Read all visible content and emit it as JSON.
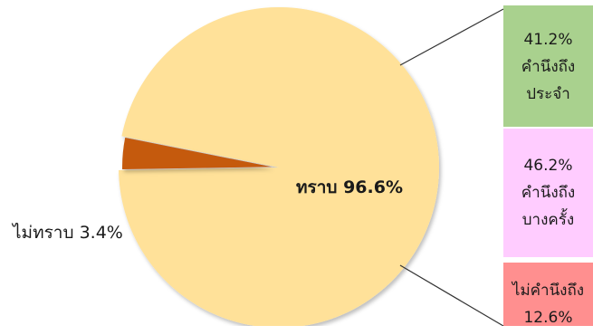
{
  "chart_data": {
    "type": "pie",
    "title": "",
    "slices": [
      {
        "label": "ทราบ",
        "value": 96.6,
        "display": "ทราบ 96.6%",
        "color": "#ffe199"
      },
      {
        "label": "ไม่ทราบ",
        "value": 3.4,
        "display": "ไม่ทราบ  3.4%",
        "color": "#c55a11",
        "exploded": true
      }
    ],
    "breakdown": {
      "of": "ทราบ",
      "type": "stacked-bar",
      "items": [
        {
          "value": 41.2,
          "percent": "41.2%",
          "line1": "คำนึงถึง",
          "line2": "ประจำ",
          "color": "#a9d18e"
        },
        {
          "value": 46.2,
          "percent": "46.2%",
          "line1": "คำนึงถึง",
          "line2": "บางครั้ง",
          "color": "#ffccff"
        },
        {
          "value": 12.6,
          "percent": "12.6%",
          "line1": "ไม่คำนึงถึง",
          "line2": "",
          "color": "#ff8f8f"
        }
      ]
    }
  }
}
